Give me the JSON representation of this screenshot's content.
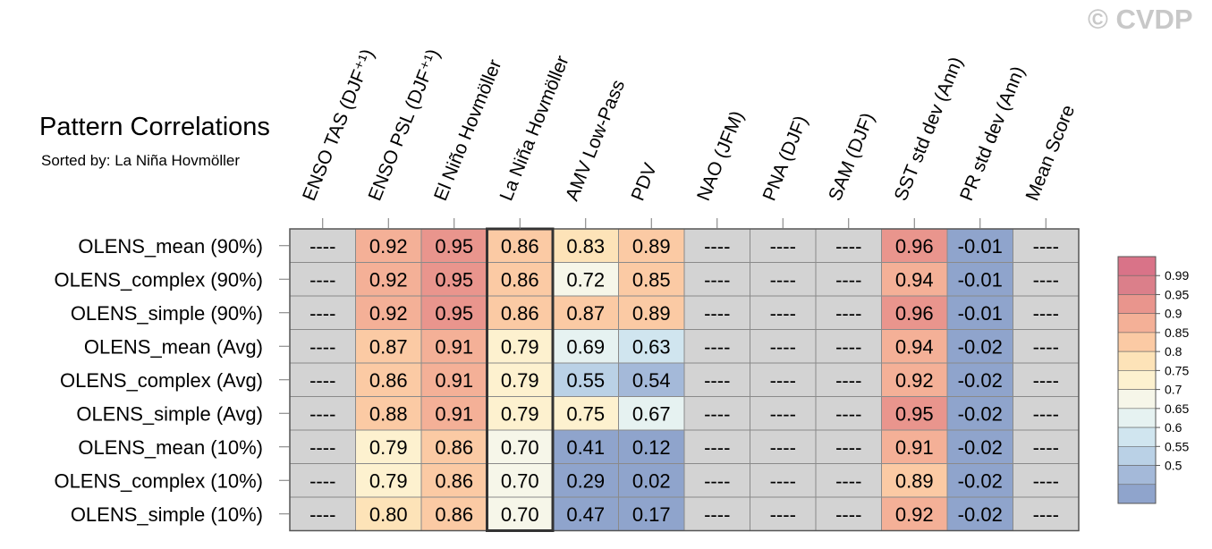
{
  "title": "Pattern Correlations",
  "subtitle": "Sorted by: La Niña Hovmöller",
  "copyright": "© CVDP",
  "colors": {
    "missing": "#d3d3d3",
    "grid": "#8a8a8a",
    "scale": [
      "#8fa4cc",
      "#a4b9d9",
      "#bad1e6",
      "#d0e5ef",
      "#e6f2f1",
      "#f6f6e9",
      "#fdf1cf",
      "#fde3b8",
      "#fbcaa4",
      "#f4b097",
      "#e9958d",
      "#db7f8a",
      "#d97388"
    ]
  },
  "chart_data": {
    "type": "heatmap",
    "title": "Pattern Correlations",
    "subtitle": "Sorted by: La Niña Hovmöller",
    "columns": [
      "ENSO TAS (DJF⁺¹)",
      "ENSO PSL (DJF⁺¹)",
      "El Niño Hovmöller",
      "La Niña Hovmöller",
      "AMV Low-Pass",
      "PDV",
      "NAO (JFM)",
      "PNA (DJF)",
      "SAM (DJF)",
      "SST std dev (Ann)",
      "PR std dev (Ann)",
      "Mean Score"
    ],
    "rows": [
      "OLENS_mean (90%)",
      "OLENS_complex (90%)",
      "OLENS_simple (90%)",
      "OLENS_mean (Avg)",
      "OLENS_complex (Avg)",
      "OLENS_simple (Avg)",
      "OLENS_mean (10%)",
      "OLENS_complex (10%)",
      "OLENS_simple (10%)"
    ],
    "values": [
      [
        null,
        0.92,
        0.95,
        0.86,
        0.83,
        0.89,
        null,
        null,
        null,
        0.96,
        -0.01,
        null
      ],
      [
        null,
        0.92,
        0.95,
        0.86,
        0.72,
        0.85,
        null,
        null,
        null,
        0.94,
        -0.01,
        null
      ],
      [
        null,
        0.92,
        0.95,
        0.86,
        0.87,
        0.89,
        null,
        null,
        null,
        0.96,
        -0.01,
        null
      ],
      [
        null,
        0.87,
        0.91,
        0.79,
        0.69,
        0.63,
        null,
        null,
        null,
        0.94,
        -0.02,
        null
      ],
      [
        null,
        0.86,
        0.91,
        0.79,
        0.55,
        0.54,
        null,
        null,
        null,
        0.92,
        -0.02,
        null
      ],
      [
        null,
        0.88,
        0.91,
        0.79,
        0.75,
        0.67,
        null,
        null,
        null,
        0.95,
        -0.02,
        null
      ],
      [
        null,
        0.79,
        0.86,
        0.7,
        0.41,
        0.12,
        null,
        null,
        null,
        0.91,
        -0.02,
        null
      ],
      [
        null,
        0.79,
        0.86,
        0.7,
        0.29,
        0.02,
        null,
        null,
        null,
        0.89,
        -0.02,
        null
      ],
      [
        null,
        0.8,
        0.86,
        0.7,
        0.47,
        0.17,
        null,
        null,
        null,
        0.92,
        -0.02,
        null
      ]
    ],
    "missing_label": "----",
    "highlight_column": "La Niña Hovmöller",
    "legend": {
      "placement": "right",
      "levels": [
        0.5,
        0.55,
        0.6,
        0.65,
        0.7,
        0.75,
        0.8,
        0.85,
        0.9,
        0.95,
        0.99
      ],
      "labels": [
        "0.99",
        "0.95",
        "0.9",
        "0.85",
        "0.8",
        "0.75",
        "0.7",
        "0.65",
        "0.6",
        "0.55",
        "0.5"
      ]
    }
  }
}
